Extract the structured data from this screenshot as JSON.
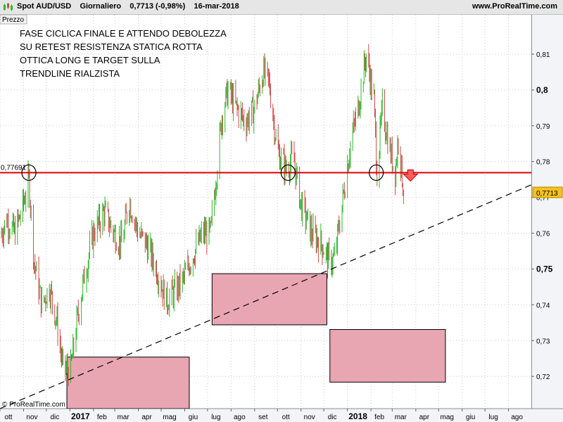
{
  "header": {
    "instrument": "Spot AUD/USD",
    "period": "Giornaliero",
    "last_change": "0,7713 (-0,98%)",
    "date": "16-mar-2018",
    "site": "www.ProRealTime.com"
  },
  "panel_label": "Prezzo",
  "watermark": "© ProRealTime.com",
  "annotation_lines": [
    "FASE CICLICA FINALE E ATTENDO DEBOLEZZA",
    "SU RETEST RESISTENZA STATICA ROTTA",
    "OTTICA LONG E TARGET SULLA",
    "TRENDLINE RIALZISTA"
  ],
  "colors": {
    "up": "#2db82d",
    "down": "#cc4b4b",
    "resistance": "#dd0000",
    "box_fill": "#e8a5b2",
    "plot_bg": "#ffffff",
    "axis_bg": "#f2f4f8",
    "price_tag": "#f6c21c"
  },
  "chart_data": {
    "type": "candlestick",
    "title": "Spot AUD/USD Giornaliero",
    "x_tick_labels": [
      "ott",
      "nov",
      "dic",
      "2017",
      "feb",
      "mar",
      "apr",
      "mag",
      "giu",
      "lug",
      "ago",
      "set",
      "ott",
      "nov",
      "dic",
      "2018",
      "feb",
      "mar",
      "apr",
      "mag",
      "giu",
      "lug",
      "ago"
    ],
    "bold_x_ticks": [
      "2017",
      "2018"
    ],
    "y_tick_labels": [
      "0,72",
      "0,73",
      "0,74",
      "0,75",
      "0,76",
      "0,77",
      "0,78",
      "0,79",
      "0,8",
      "0,81"
    ],
    "bold_y_ticks": [
      "0,75",
      "0,8"
    ],
    "ylim": [
      0.711,
      0.821
    ],
    "close_path": [
      [
        "2016-10-01",
        0.759
      ],
      [
        "2016-10-10",
        0.764
      ],
      [
        "2016-10-20",
        0.76
      ],
      [
        "2016-10-28",
        0.765
      ],
      [
        "2016-11-08",
        0.775
      ],
      [
        "2016-11-15",
        0.752
      ],
      [
        "2016-11-25",
        0.74
      ],
      [
        "2016-12-05",
        0.745
      ],
      [
        "2016-12-15",
        0.735
      ],
      [
        "2016-12-23",
        0.722
      ],
      [
        "2017-01-02",
        0.722
      ],
      [
        "2017-01-10",
        0.735
      ],
      [
        "2017-01-20",
        0.748
      ],
      [
        "2017-02-01",
        0.76
      ],
      [
        "2017-02-15",
        0.766
      ],
      [
        "2017-02-28",
        0.76
      ],
      [
        "2017-03-10",
        0.757
      ],
      [
        "2017-03-20",
        0.769
      ],
      [
        "2017-04-01",
        0.76
      ],
      [
        "2017-04-12",
        0.757
      ],
      [
        "2017-04-25",
        0.75
      ],
      [
        "2017-05-08",
        0.741
      ],
      [
        "2017-05-20",
        0.744
      ],
      [
        "2017-05-30",
        0.747
      ],
      [
        "2017-06-10",
        0.753
      ],
      [
        "2017-06-25",
        0.76
      ],
      [
        "2017-07-05",
        0.76
      ],
      [
        "2017-07-12",
        0.775
      ],
      [
        "2017-07-20",
        0.793
      ],
      [
        "2017-07-28",
        0.8
      ],
      [
        "2017-08-08",
        0.795
      ],
      [
        "2017-08-20",
        0.791
      ],
      [
        "2017-09-01",
        0.795
      ],
      [
        "2017-09-12",
        0.805
      ],
      [
        "2017-09-20",
        0.802
      ],
      [
        "2017-10-01",
        0.783
      ],
      [
        "2017-10-12",
        0.778
      ],
      [
        "2017-10-22",
        0.781
      ],
      [
        "2017-11-01",
        0.768
      ],
      [
        "2017-11-15",
        0.76
      ],
      [
        "2017-11-28",
        0.757
      ],
      [
        "2017-12-08",
        0.752
      ],
      [
        "2017-12-15",
        0.753
      ],
      [
        "2017-12-25",
        0.768
      ],
      [
        "2018-01-05",
        0.785
      ],
      [
        "2018-01-15",
        0.795
      ],
      [
        "2018-01-26",
        0.81
      ],
      [
        "2018-02-05",
        0.797
      ],
      [
        "2018-02-09",
        0.777
      ],
      [
        "2018-02-16",
        0.795
      ],
      [
        "2018-02-26",
        0.783
      ],
      [
        "2018-03-05",
        0.777
      ],
      [
        "2018-03-09",
        0.787
      ],
      [
        "2018-03-16",
        0.7713
      ]
    ],
    "series": [
      {
        "name": "Resistenza statica",
        "type": "hline",
        "y": 0.77691,
        "label": "0,77691"
      },
      {
        "name": "Trendline rialzista",
        "type": "line",
        "points": [
          [
            "2016-10-01",
            0.711
          ],
          [
            "2018-08-31",
            0.7735
          ]
        ]
      }
    ],
    "rectangles": [
      {
        "x0": "2016-12-28",
        "x1": "2017-06-07",
        "y0": 0.711,
        "y1": 0.7254
      },
      {
        "x0": "2017-07-07",
        "x1": "2017-12-05",
        "y0": 0.7344,
        "y1": 0.7487
      },
      {
        "x0": "2017-12-09",
        "x1": "2018-05-10",
        "y0": 0.7184,
        "y1": 0.7331
      }
    ],
    "circles": [
      {
        "x": "2016-11-08",
        "y": 0.77691
      },
      {
        "x": "2017-10-15",
        "y": 0.77691
      },
      {
        "x": "2018-02-08",
        "y": 0.77691
      }
    ],
    "arrows": [
      {
        "x": "2018-03-25",
        "y": 0.7765,
        "direction": "down"
      }
    ],
    "last_price": {
      "label": "0,7713",
      "y": 0.7713
    }
  }
}
